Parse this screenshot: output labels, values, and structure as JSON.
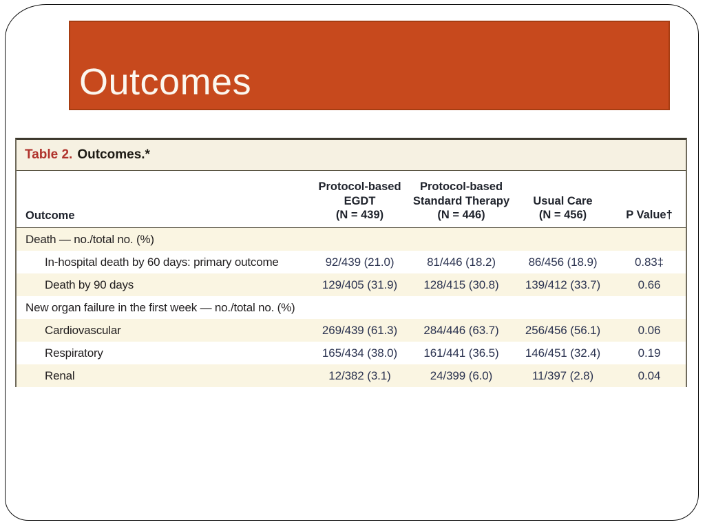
{
  "slide": {
    "title": "Outcomes",
    "banner_color": "#c7491d",
    "banner_border_color": "#a63d12"
  },
  "table": {
    "label": "Table 2.",
    "caption": "Outcomes.*",
    "label_color": "#b0332c",
    "stripe_color": "#faf5e2",
    "columns": {
      "outcome": "Outcome",
      "egdt": "Protocol-based\nEGDT\n(N = 439)",
      "standard": "Protocol-based\nStandard Therapy\n(N = 446)",
      "usual": "Usual Care\n(N = 456)",
      "pvalue": "P Value†"
    },
    "rows": [
      {
        "label": "Death — no./total no. (%)",
        "values": [
          "",
          "",
          "",
          ""
        ]
      },
      {
        "label": "In-hospital death by 60 days: primary outcome",
        "values": [
          "92/439 (21.0)",
          "81/446 (18.2)",
          "86/456 (18.9)",
          "0.83‡"
        ]
      },
      {
        "label": "Death by 90 days",
        "values": [
          "129/405 (31.9)",
          "128/415 (30.8)",
          "139/412 (33.7)",
          "0.66"
        ]
      },
      {
        "label": "New organ failure in the first week — no./total no. (%)",
        "values": [
          "",
          "",
          "",
          ""
        ]
      },
      {
        "label": "Cardiovascular",
        "values": [
          "269/439 (61.3)",
          "284/446 (63.7)",
          "256/456 (56.1)",
          "0.06"
        ]
      },
      {
        "label": "Respiratory",
        "values": [
          "165/434 (38.0)",
          "161/441 (36.5)",
          "146/451 (32.4)",
          "0.19"
        ]
      },
      {
        "label": "Renal",
        "values": [
          "12/382 (3.1)",
          "24/399 (6.0)",
          "11/397 (2.8)",
          "0.04"
        ]
      }
    ]
  }
}
